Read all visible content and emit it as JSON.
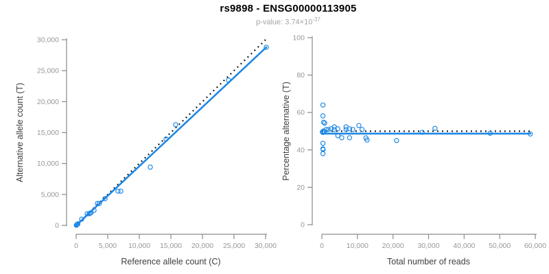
{
  "header": {
    "title": "rs9898 - ENSG00000113905",
    "subtitle_prefix": "p-value: 3.74×10",
    "subtitle_exponent": "-37"
  },
  "colors": {
    "points": "#1E88E5",
    "fit_line": "#1E88E5",
    "ref_line": "#0a0a0a",
    "axis": "#8a8a8a",
    "tick_label": "#979797",
    "axis_title": "#3d3d3d"
  },
  "chart_data": [
    {
      "type": "scatter",
      "title": "",
      "xlabel": "Reference allele count (C)",
      "ylabel": "Alternative allele count (T)",
      "xlim": [
        0,
        30000
      ],
      "ylim": [
        0,
        30000
      ],
      "xticks": [
        0,
        5000,
        10000,
        15000,
        20000,
        25000,
        30000
      ],
      "yticks": [
        0,
        5000,
        10000,
        15000,
        20000,
        25000,
        30000
      ],
      "grid": false,
      "legend": "none",
      "points": [
        [
          30,
          30
        ],
        [
          80,
          60
        ],
        [
          120,
          110
        ],
        [
          150,
          140
        ],
        [
          200,
          180
        ],
        [
          260,
          240
        ],
        [
          870,
          1000
        ],
        [
          1740,
          1880
        ],
        [
          2070,
          1880
        ],
        [
          2250,
          1980
        ],
        [
          2350,
          2050
        ],
        [
          2830,
          2440
        ],
        [
          3370,
          3540
        ],
        [
          3670,
          3540
        ],
        [
          4570,
          4320
        ],
        [
          6630,
          5530
        ],
        [
          7070,
          5530
        ],
        [
          11740,
          9410
        ],
        [
          14240,
          13950
        ],
        [
          15760,
          16270
        ],
        [
          24130,
          23470
        ],
        [
          30110,
          28780
        ]
      ],
      "fit_line": {
        "style": "solid",
        "points": [
          [
            0,
            0
          ],
          [
            30110,
            28780
          ]
        ]
      },
      "identity_line": {
        "style": "dotted",
        "points": [
          [
            0,
            0
          ],
          [
            30200,
            30200
          ]
        ]
      }
    },
    {
      "type": "scatter",
      "title": "",
      "xlabel": "Total number of reads",
      "ylabel": "Percentage alternative (T)",
      "xlim": [
        0,
        60000
      ],
      "ylim": [
        0,
        100
      ],
      "xticks": [
        0,
        10000,
        20000,
        30000,
        40000,
        50000,
        60000
      ],
      "yticks": [
        0,
        20,
        40,
        60,
        80,
        100
      ],
      "grid": false,
      "legend": "none",
      "points": [
        [
          300,
          64.0
        ],
        [
          300,
          58.2
        ],
        [
          500,
          54.8
        ],
        [
          800,
          54.3
        ],
        [
          150,
          49.6
        ],
        [
          300,
          49.3
        ],
        [
          450,
          50.1
        ],
        [
          700,
          49.8
        ],
        [
          1200,
          50.9
        ],
        [
          1800,
          50.9
        ],
        [
          2600,
          51.3
        ],
        [
          3500,
          52.3
        ],
        [
          3500,
          50.9
        ],
        [
          4500,
          51.3
        ],
        [
          4500,
          47.6
        ],
        [
          5600,
          46.5
        ],
        [
          6800,
          52.3
        ],
        [
          6800,
          50.9
        ],
        [
          7800,
          51.3
        ],
        [
          7800,
          46.5
        ],
        [
          8700,
          50.9
        ],
        [
          10400,
          53.0
        ],
        [
          11300,
          50.9
        ],
        [
          12400,
          46.4
        ],
        [
          12700,
          45.3
        ],
        [
          21000,
          45.0
        ],
        [
          28200,
          49.4
        ],
        [
          31800,
          51.5
        ],
        [
          47300,
          48.9
        ],
        [
          58600,
          48.5
        ],
        [
          300,
          43.5
        ],
        [
          300,
          40.6
        ],
        [
          350,
          40.2
        ],
        [
          300,
          38.0
        ]
      ],
      "fit_line": {
        "style": "solid",
        "points": [
          [
            0,
            48.7
          ],
          [
            58600,
            48.7
          ]
        ]
      },
      "identity_line": {
        "style": "dotted",
        "points": [
          [
            0,
            50
          ],
          [
            58600,
            50
          ]
        ]
      }
    }
  ]
}
